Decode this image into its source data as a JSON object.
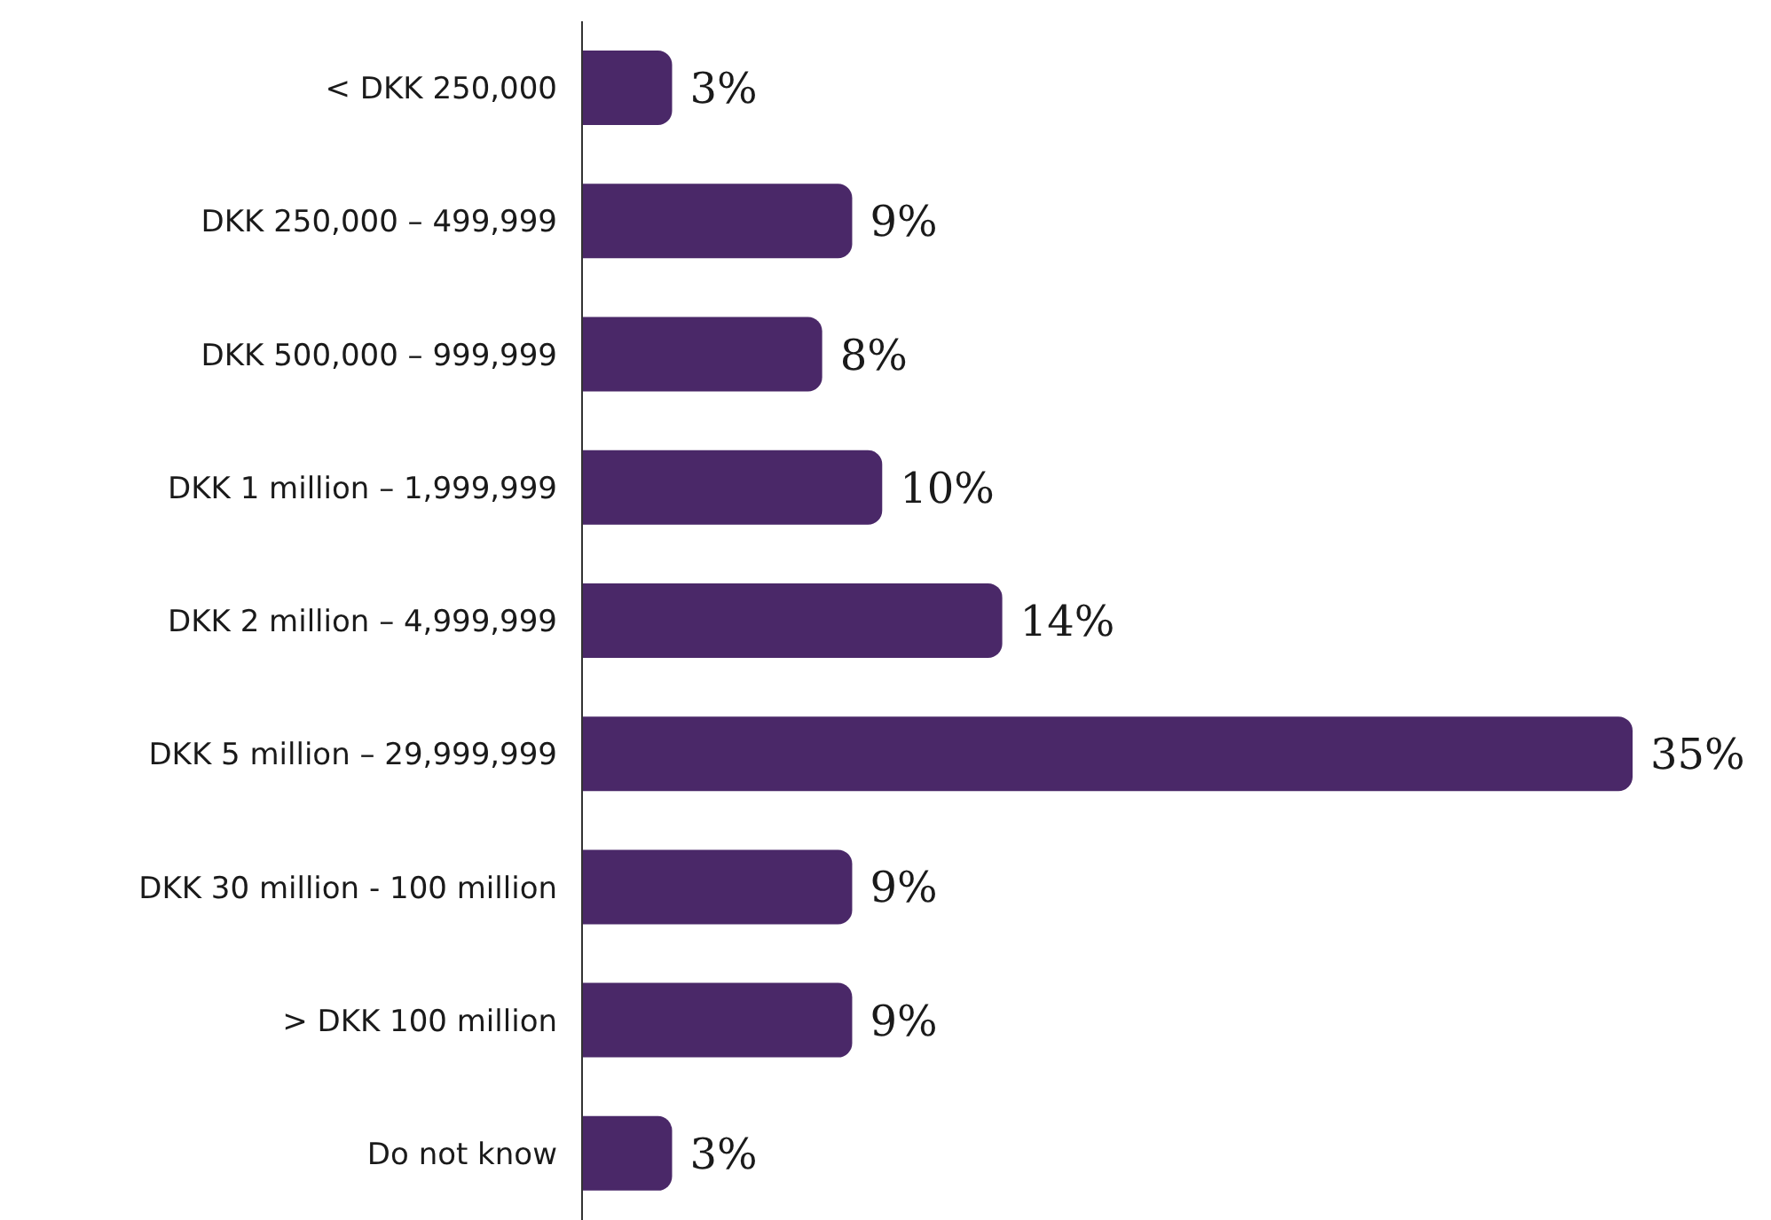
{
  "chart_data": {
    "type": "bar",
    "orientation": "horizontal",
    "categories": [
      "< DKK 250,000",
      "DKK 250,000 – 499,999",
      "DKK 500,000 – 999,999",
      "DKK 1 million – 1,999,999",
      "DKK 2 million – 4,999,999",
      "DKK 5 million – 29,999,999",
      "DKK 30 million - 100 million",
      "> DKK 100 million",
      "Do not know"
    ],
    "values": [
      3,
      9,
      8,
      10,
      14,
      35,
      9,
      9,
      3
    ],
    "value_labels": [
      "3%",
      "9%",
      "8%",
      "10%",
      "14%",
      "35%",
      "9%",
      "9%",
      "3%"
    ],
    "color": "#4a2868"
  }
}
